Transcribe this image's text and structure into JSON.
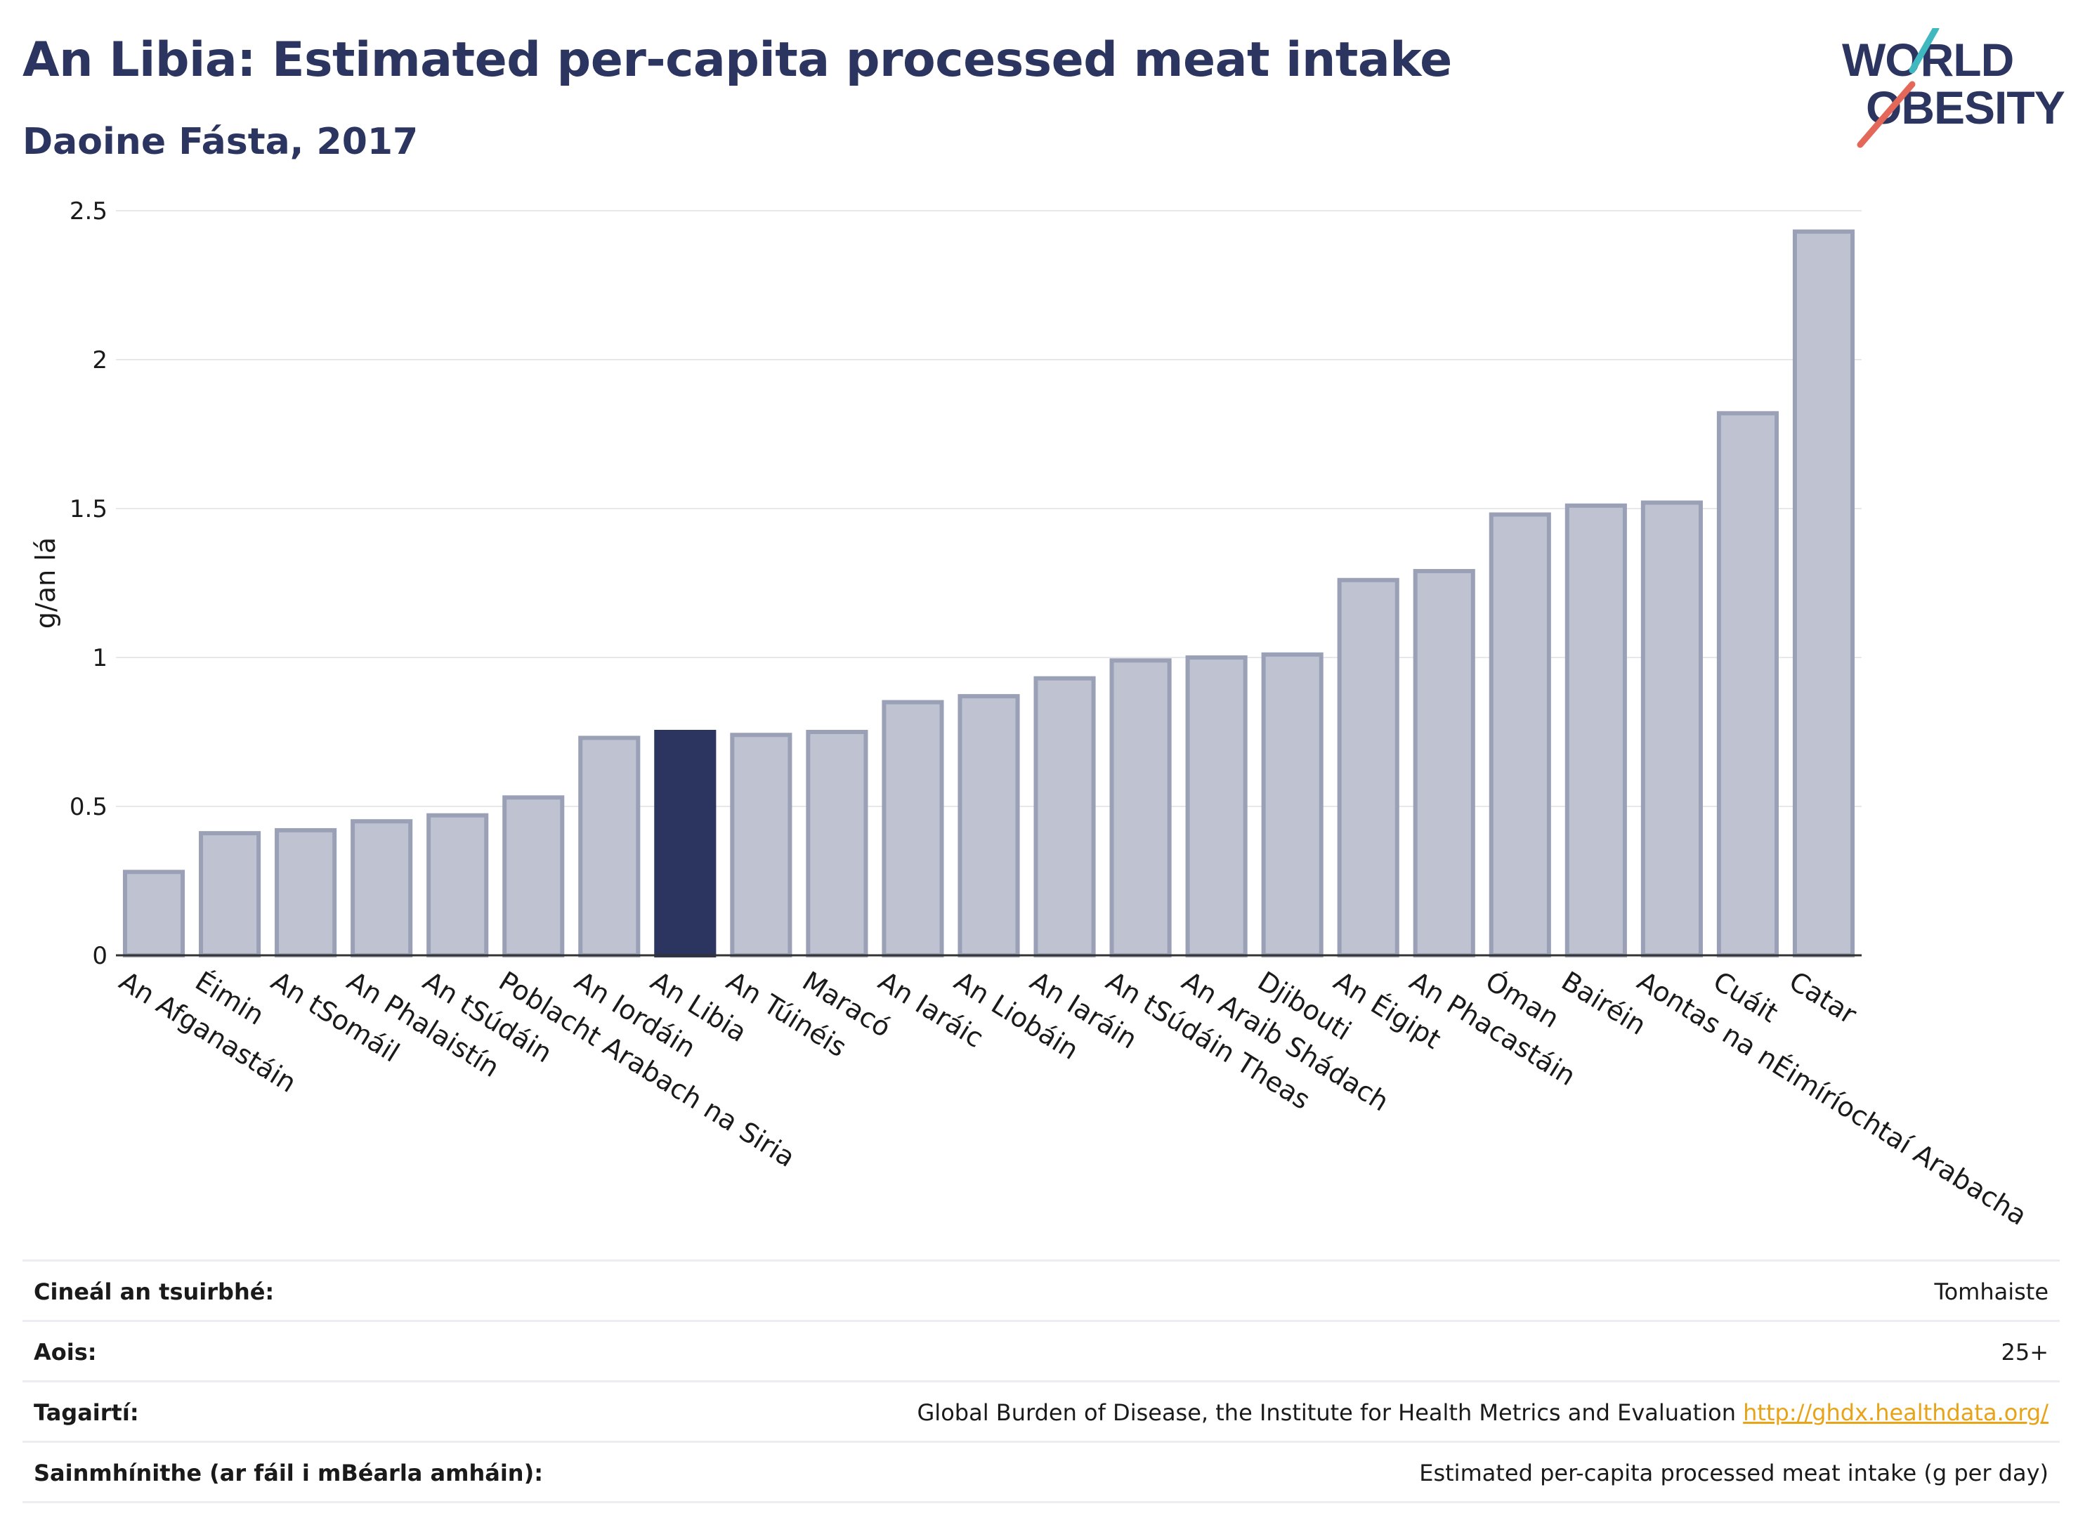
{
  "header": {
    "title": "An Libia: Estimated per-capita processed meat intake",
    "subtitle": "Daoine Fásta, 2017"
  },
  "logo": {
    "line1": "WORLD",
    "line2": "OBESITY"
  },
  "colors": {
    "bar": "#bfc3d1",
    "bar_stroke": "#9aa0b6",
    "highlight": "#2b3560",
    "text": "#2b3560",
    "link": "#e8a317"
  },
  "chart_data": {
    "type": "bar",
    "categories": [
      "An Afganastáin",
      "Éimin",
      "An tSomáil",
      "An Phalaistín",
      "An tSúdáin",
      "Poblacht Arabach na Siria",
      "An Iordáin",
      "An Libia",
      "An Túinéis",
      "Maracó",
      "An Iaráic",
      "An Liobáin",
      "An Iaráin",
      "An tSúdáin Theas",
      "An Araib Shádach",
      "Djibouti",
      "An Éigipt",
      "An Phacastáin",
      "Óman",
      "Bairéin",
      "Aontas na nÉimíríochtaí Arabacha",
      "Cuáit",
      "Catar"
    ],
    "values": [
      0.28,
      0.41,
      0.42,
      0.45,
      0.47,
      0.53,
      0.73,
      0.75,
      0.74,
      0.75,
      0.85,
      0.87,
      0.93,
      0.99,
      1.0,
      1.01,
      1.26,
      1.29,
      1.48,
      1.51,
      1.52,
      1.82,
      2.43
    ],
    "highlight": "An Libia",
    "ylabel": "g/an lá",
    "ylim": [
      0,
      2.5
    ],
    "yticks": [
      0,
      0.5,
      1,
      1.5,
      2,
      2.5
    ],
    "ytick_labels": [
      "0",
      "0.5",
      "1",
      "1.5",
      "2",
      "2.5"
    ],
    "grid": true
  },
  "info": [
    {
      "label": "Cineál an tsuirbhé:",
      "value": "Tomhaiste"
    },
    {
      "label": "Aois:",
      "value": "25+"
    },
    {
      "label": "Tagairtí:",
      "value": "Global Burden of Disease, the Institute for Health Metrics and Evaluation",
      "link": "http://ghdx.healthdata.org/"
    },
    {
      "label": "Sainmhínithe (ar fáil i mBéarla amháin):",
      "value": "Estimated per-capita processed meat intake (g per day)"
    }
  ]
}
